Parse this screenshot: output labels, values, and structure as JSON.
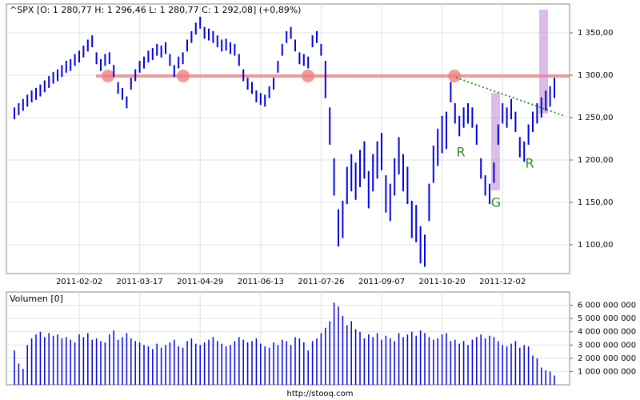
{
  "chart_data": [
    {
      "type": "range-bar",
      "title": "^SPX [O: 1 280,77  H: 1 296,46  L: 1 280,77  C: 1 292,08] (+0,89%)",
      "color": "#0000dd",
      "grid": true,
      "categories": [
        null,
        null,
        null,
        null,
        null,
        null,
        null,
        null,
        null,
        null,
        null,
        null,
        null,
        null,
        null,
        "2011-02-02",
        null,
        null,
        null,
        null,
        null,
        null,
        null,
        null,
        null,
        null,
        null,
        null,
        null,
        "2011-03-17",
        null,
        null,
        null,
        null,
        null,
        null,
        null,
        null,
        null,
        null,
        null,
        null,
        null,
        "2011-04-29",
        null,
        null,
        null,
        null,
        null,
        null,
        null,
        null,
        null,
        null,
        null,
        null,
        null,
        "2011-06-13",
        null,
        null,
        null,
        null,
        null,
        null,
        null,
        null,
        null,
        null,
        null,
        null,
        null,
        "2011-07-26",
        null,
        null,
        null,
        null,
        null,
        null,
        null,
        null,
        null,
        null,
        null,
        null,
        null,
        "2011-09-07",
        null,
        null,
        null,
        null,
        null,
        null,
        null,
        null,
        null,
        null,
        null,
        null,
        null,
        "2011-10-20",
        null,
        null,
        null,
        null,
        null,
        null,
        null,
        null,
        null,
        null,
        null,
        null,
        null,
        "2011-12-02",
        null,
        null,
        null,
        null,
        null,
        null,
        null,
        null,
        null,
        null,
        null,
        null
      ],
      "highs": [
        1262,
        1267,
        1272,
        1277,
        1282,
        1285,
        1289,
        1294,
        1299,
        1304,
        1307,
        1312,
        1317,
        1319,
        1325,
        1329,
        1335,
        1342,
        1347,
        1327,
        1319,
        1325,
        1327,
        1312,
        1292,
        1285,
        1275,
        1297,
        1307,
        1317,
        1322,
        1329,
        1332,
        1337,
        1335,
        1339,
        1325,
        1312,
        1322,
        1327,
        1342,
        1352,
        1362,
        1369,
        1357,
        1355,
        1352,
        1347,
        1342,
        1343,
        1339,
        1337,
        1325,
        1307,
        1297,
        1292,
        1282,
        1279,
        1277,
        1287,
        1297,
        1317,
        1337,
        1352,
        1357,
        1342,
        1327,
        1325,
        1322,
        1347,
        1352,
        1337,
        1317,
        1262,
        1202,
        1142,
        1152,
        1192,
        1207,
        1197,
        1212,
        1222,
        1187,
        1207,
        1222,
        1232,
        1182,
        1172,
        1202,
        1227,
        1207,
        1192,
        1152,
        1147,
        1122,
        1112,
        1172,
        1217,
        1237,
        1252,
        1257,
        1292,
        1267,
        1252,
        1262,
        1267,
        1262,
        1242,
        1202,
        1182,
        1172,
        1197,
        1242,
        1267,
        1262,
        1272,
        1257,
        1227,
        1222,
        1242,
        1257,
        1267,
        1274,
        1282,
        1287,
        1297
      ],
      "lows": [
        1248,
        1253,
        1258,
        1263,
        1268,
        1271,
        1275,
        1280,
        1285,
        1290,
        1293,
        1298,
        1303,
        1305,
        1311,
        1315,
        1321,
        1328,
        1333,
        1313,
        1305,
        1311,
        1313,
        1298,
        1278,
        1271,
        1261,
        1283,
        1293,
        1303,
        1308,
        1315,
        1318,
        1323,
        1321,
        1325,
        1311,
        1298,
        1308,
        1313,
        1328,
        1338,
        1348,
        1355,
        1343,
        1341,
        1338,
        1333,
        1328,
        1329,
        1325,
        1323,
        1311,
        1293,
        1283,
        1278,
        1268,
        1265,
        1263,
        1273,
        1283,
        1303,
        1323,
        1338,
        1343,
        1328,
        1313,
        1311,
        1308,
        1333,
        1338,
        1323,
        1273,
        1218,
        1158,
        1098,
        1108,
        1148,
        1163,
        1153,
        1168,
        1178,
        1143,
        1163,
        1178,
        1188,
        1138,
        1128,
        1158,
        1183,
        1163,
        1148,
        1108,
        1103,
        1078,
        1074,
        1128,
        1173,
        1193,
        1208,
        1213,
        1268,
        1243,
        1228,
        1238,
        1243,
        1238,
        1218,
        1178,
        1158,
        1148,
        1173,
        1218,
        1243,
        1238,
        1248,
        1233,
        1203,
        1198,
        1218,
        1233,
        1243,
        1250,
        1258,
        1263,
        1273
      ],
      "ylim": [
        1066,
        1384
      ],
      "yticks": [
        {
          "value": 1100,
          "label": "1 100,00"
        },
        {
          "value": 1150,
          "label": "1 150,00"
        },
        {
          "value": 1200,
          "label": "1 200,00"
        },
        {
          "value": 1250,
          "label": "1 250,00"
        },
        {
          "value": 1300,
          "label": "1 300,00"
        },
        {
          "value": 1350,
          "label": "1 350,00"
        }
      ],
      "annotations": [
        "R",
        "G",
        "R"
      ]
    },
    {
      "type": "bar",
      "title": "Volumen [0]",
      "color": "#0000dd",
      "grid": true,
      "values": [
        2600000000,
        1600000000,
        1200000000,
        3000000000,
        3500000000,
        3800000000,
        4000000000,
        3600000000,
        3900000000,
        3700000000,
        3800000000,
        3500000000,
        3600000000,
        3400000000,
        3200000000,
        3800000000,
        3600000000,
        3900000000,
        3400000000,
        3500000000,
        3300000000,
        3200000000,
        3800000000,
        4100000000,
        3400000000,
        3600000000,
        3900000000,
        3500000000,
        3300000000,
        3200000000,
        3000000000,
        2900000000,
        2700000000,
        3100000000,
        2800000000,
        3000000000,
        3200000000,
        3400000000,
        2900000000,
        2800000000,
        3300000000,
        3500000000,
        3100000000,
        3000000000,
        3200000000,
        3400000000,
        3600000000,
        3300000000,
        3100000000,
        2900000000,
        3000000000,
        3300000000,
        3600000000,
        3400000000,
        3200000000,
        3300000000,
        3500000000,
        3100000000,
        2900000000,
        2800000000,
        3200000000,
        3000000000,
        3400000000,
        3300000000,
        3000000000,
        3600000000,
        3500000000,
        3200000000,
        2600000000,
        3300000000,
        3500000000,
        3900000000,
        4300000000,
        4800000000,
        6200000000,
        5900000000,
        5200000000,
        4500000000,
        4800000000,
        4200000000,
        4000000000,
        3500000000,
        3800000000,
        3600000000,
        3900000000,
        3400000000,
        3700000000,
        3500000000,
        3300000000,
        3900000000,
        3600000000,
        3800000000,
        4000000000,
        3700000000,
        4100000000,
        3900000000,
        3600000000,
        3400000000,
        3500000000,
        3800000000,
        3900000000,
        3300000000,
        3400000000,
        3100000000,
        3300000000,
        3000000000,
        3400000000,
        3600000000,
        3800000000,
        3500000000,
        3700000000,
        3600000000,
        3300000000,
        3000000000,
        2900000000,
        3100000000,
        3300000000,
        2800000000,
        3000000000,
        2900000000,
        2200000000,
        2000000000,
        1300000000,
        1100000000,
        1000000000,
        700000000
      ],
      "ylim": [
        0,
        7000000000
      ],
      "yticks": [
        {
          "value": 1000000000,
          "label": "1 000 000 000"
        },
        {
          "value": 2000000000,
          "label": "2 000 000 000"
        },
        {
          "value": 3000000000,
          "label": "3 000 000 000"
        },
        {
          "value": 4000000000,
          "label": "4 000 000 000"
        },
        {
          "value": 5000000000,
          "label": "5 000 000 000"
        },
        {
          "value": 6000000000,
          "label": "6 000 000 000"
        }
      ]
    }
  ],
  "footer": "http://stooq.com"
}
